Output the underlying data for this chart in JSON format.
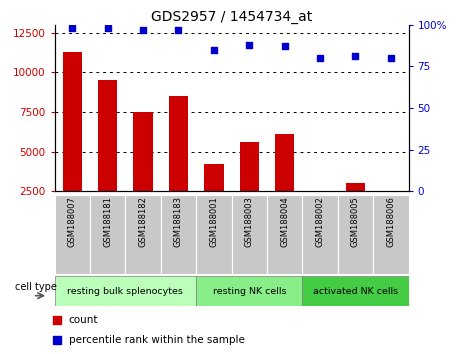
{
  "title": "GDS2957 / 1454734_at",
  "samples": [
    "GSM188007",
    "GSM188181",
    "GSM188182",
    "GSM188183",
    "GSM188001",
    "GSM188003",
    "GSM188004",
    "GSM188002",
    "GSM188005",
    "GSM188006"
  ],
  "counts": [
    11300,
    9500,
    7500,
    8500,
    4200,
    5600,
    6100,
    2400,
    3000,
    2400
  ],
  "percentiles": [
    98,
    98,
    97,
    97,
    85,
    88,
    87,
    80,
    81,
    80
  ],
  "bar_color": "#cc0000",
  "dot_color": "#0000cc",
  "ylim_left": [
    2500,
    13000
  ],
  "ylim_right": [
    0,
    100
  ],
  "yticks_left": [
    2500,
    5000,
    7500,
    10000,
    12500
  ],
  "yticks_right": [
    0,
    25,
    50,
    75,
    100
  ],
  "yticklabels_right": [
    "0",
    "25",
    "50",
    "75",
    "100%"
  ],
  "cell_groups": [
    {
      "label": "resting bulk splenocytes",
      "start": 0,
      "end": 4,
      "color": "#bbffbb"
    },
    {
      "label": "resting NK cells",
      "start": 4,
      "end": 7,
      "color": "#88ee88"
    },
    {
      "label": "activated NK cells",
      "start": 7,
      "end": 10,
      "color": "#44cc44"
    }
  ],
  "cell_type_label": "cell type",
  "legend_count_label": "count",
  "legend_percentile_label": "percentile rank within the sample",
  "title_fontsize": 10,
  "tick_fontsize": 7.5,
  "bar_width": 0.55,
  "sample_box_color": "#c8c8c8"
}
